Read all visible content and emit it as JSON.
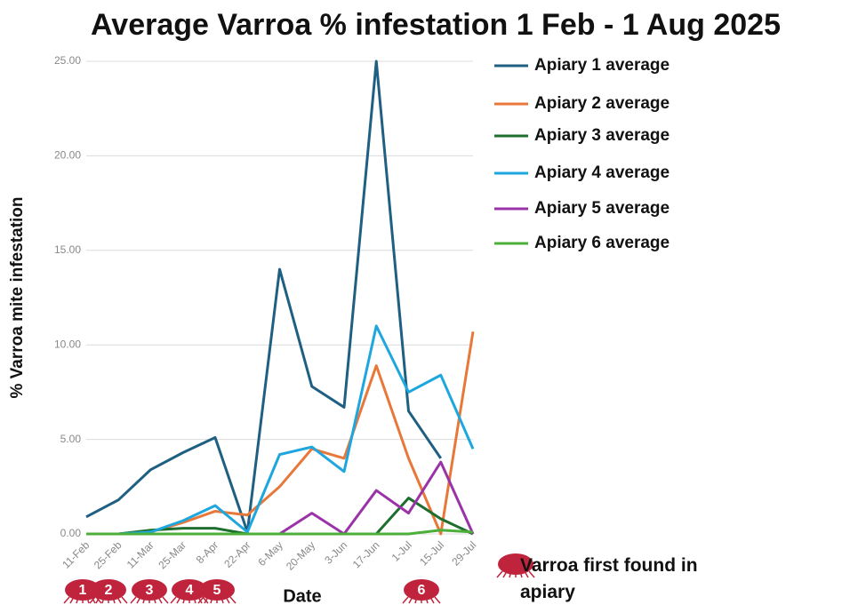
{
  "chart_data": {
    "type": "line",
    "title": "Average Varroa % infestation 1 Feb - 1 Aug 2025",
    "x_label": "Date",
    "y_label": "% Varroa mite infestation",
    "categories": [
      "11-Feb",
      "25-Feb",
      "11-Mar",
      "25-Mar",
      "8-Apr",
      "22-Apr",
      "6-May",
      "20-May",
      "3-Jun",
      "17-Jun",
      "1-Jul",
      "15-Jul",
      "29-Jul"
    ],
    "series": [
      {
        "name": "Apiary 1 average",
        "color": "#1f5f82",
        "values": [
          0.9,
          1.8,
          3.4,
          4.3,
          5.1,
          0.1,
          14.0,
          7.8,
          6.7,
          25.0,
          6.5,
          4.0,
          null
        ]
      },
      {
        "name": "Apiary 2 average",
        "color": "#e8783a",
        "values": [
          0,
          0,
          0.1,
          0.6,
          1.2,
          1.0,
          2.5,
          4.5,
          4.0,
          8.9,
          4.0,
          0,
          10.7
        ]
      },
      {
        "name": "Apiary 3 average",
        "color": "#1e6e2e",
        "values": [
          0,
          0,
          0.2,
          0.3,
          0.3,
          0,
          0,
          0,
          0,
          0,
          1.9,
          0.8,
          0
        ]
      },
      {
        "name": "Apiary 4 average",
        "color": "#1ea7de",
        "values": [
          0,
          0,
          0.1,
          0.7,
          1.5,
          0.1,
          4.2,
          4.6,
          3.3,
          11.0,
          7.5,
          8.4,
          4.5
        ]
      },
      {
        "name": "Apiary 5 average",
        "color": "#9b33a8",
        "values": [
          0,
          0,
          0,
          0,
          0,
          0,
          0,
          1.1,
          0,
          2.3,
          1.1,
          3.8,
          0
        ]
      },
      {
        "name": "Apiary 6 average",
        "color": "#4caf3a",
        "values": [
          0,
          0,
          0,
          0,
          0,
          0,
          0,
          0,
          0,
          0,
          0,
          0.2,
          0.1
        ]
      }
    ],
    "ylim": [
      0,
      25
    ],
    "yticks": [
      {
        "value": 0,
        "label": "0.00"
      },
      {
        "value": 5,
        "label": "5.00"
      },
      {
        "value": 10,
        "label": "10.00"
      },
      {
        "value": 15,
        "label": "15.00"
      },
      {
        "value": 20,
        "label": "20.00"
      },
      {
        "value": 25,
        "label": "25.00"
      }
    ],
    "grid": true,
    "legend": "right",
    "annotation": {
      "text": "Varroa first found in apiary",
      "markers": [
        "1",
        "2",
        "3",
        "4",
        "5",
        "6"
      ],
      "color": "#c0243c"
    }
  }
}
